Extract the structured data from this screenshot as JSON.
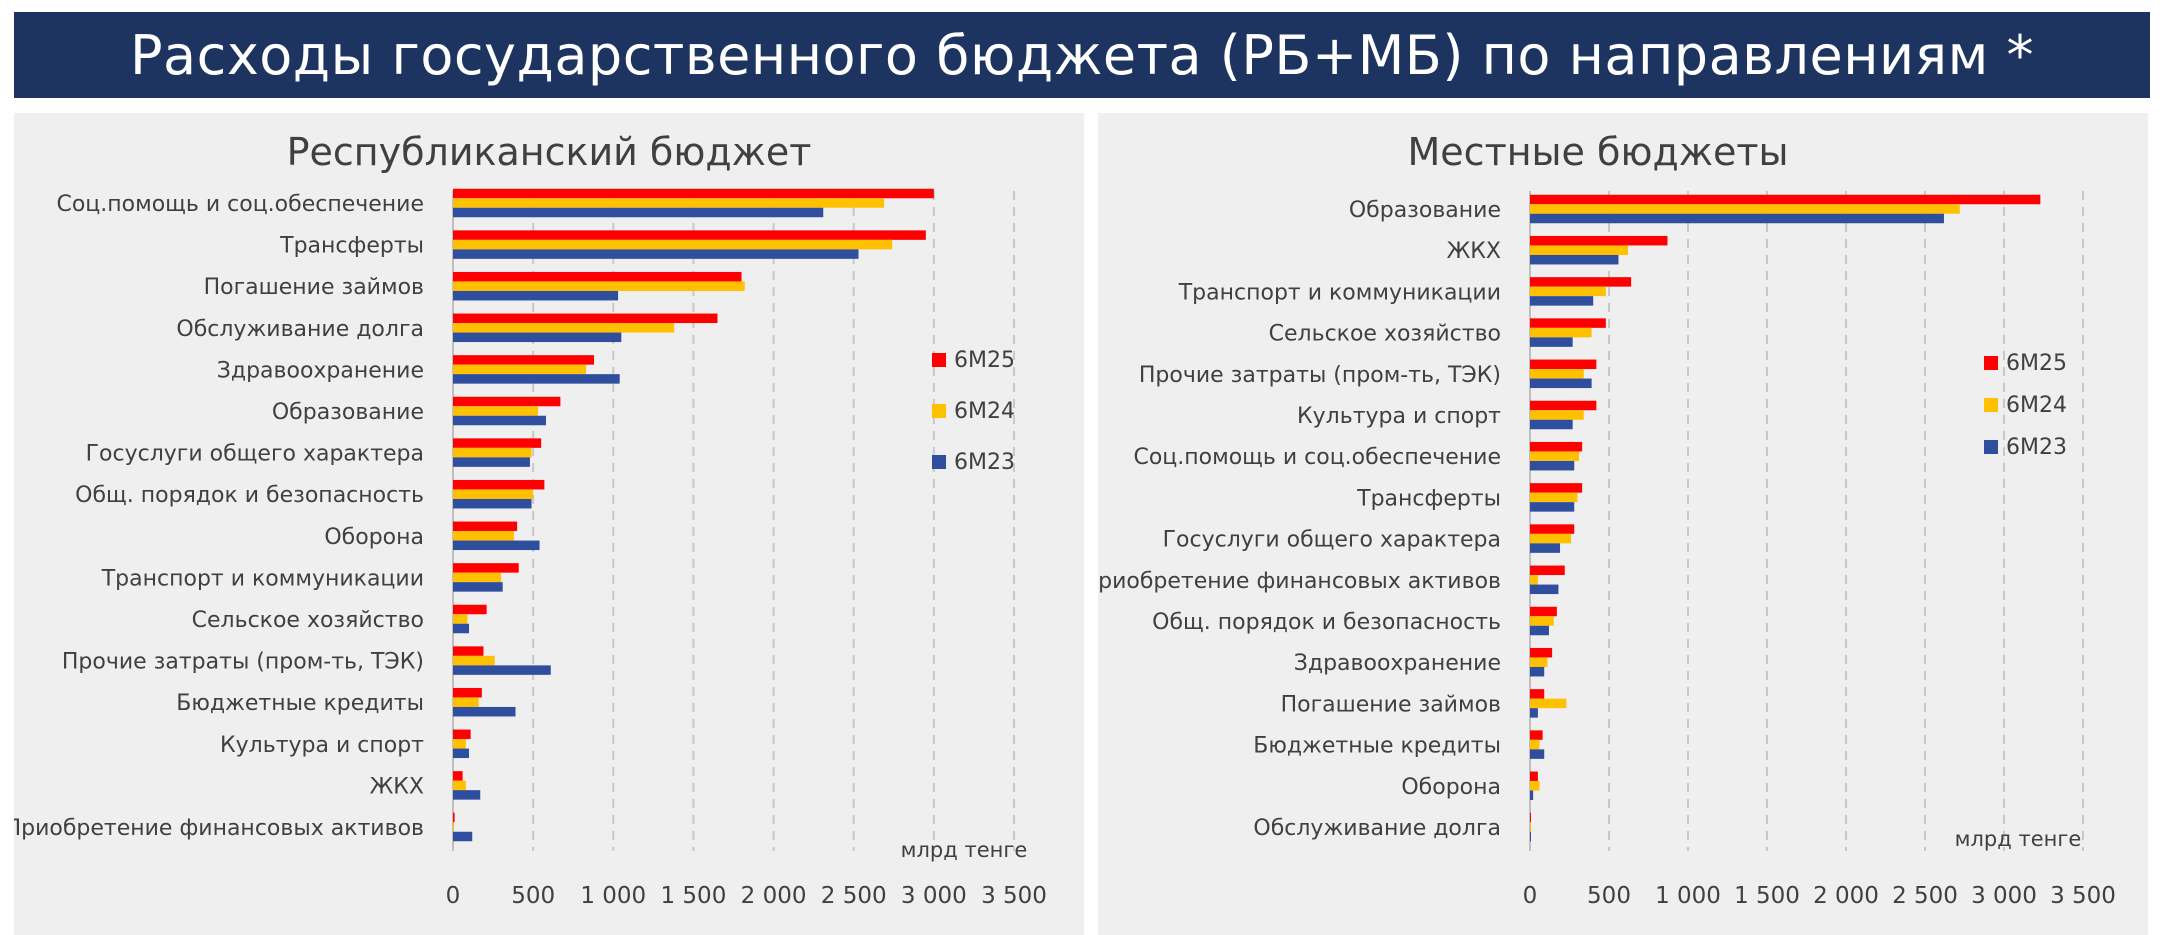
{
  "banner": {
    "title": "Расходы государственного бюджета (РБ+МБ) по направлениям *"
  },
  "colors": {
    "6М25": "#ff0000",
    "6М24": "#ffc000",
    "6М23": "#2f4f9e",
    "banner": "#1d3461"
  },
  "chart_data": [
    {
      "type": "bar",
      "orientation": "horizontal",
      "title": "Республиканский бюджет",
      "unit_label": "млрд тенге",
      "xlim": [
        0,
        3500
      ],
      "xticks": [
        "0",
        "500",
        "1 000",
        "1 500",
        "2 000",
        "2 500",
        "3 000",
        "3 500"
      ],
      "grid": "vertical dashed",
      "legend_position": "right",
      "categories": [
        "Соц.помощь и соц.обеспечение",
        "Трансферты",
        "Погашение займов",
        "Обслуживание долга",
        "Здравоохранение",
        "Образование",
        "Госуслуги общего характера",
        "Общ. порядок и безопасность",
        "Оборона",
        "Транспорт и коммуникации",
        "Сельское хозяйство",
        "Прочие затраты (пром-ть, ТЭК)",
        "Бюджетные кредиты",
        "Культура и спорт",
        "ЖКХ",
        "Приобретение финансовых активов"
      ],
      "series": [
        {
          "name": "6М25",
          "values": [
            3000,
            2950,
            1800,
            1650,
            880,
            670,
            550,
            570,
            400,
            410,
            210,
            190,
            180,
            110,
            60,
            10
          ]
        },
        {
          "name": "6М24",
          "values": [
            2690,
            2740,
            1820,
            1380,
            830,
            530,
            490,
            500,
            380,
            300,
            90,
            260,
            160,
            80,
            80,
            5
          ]
        },
        {
          "name": "6М23",
          "values": [
            2310,
            2530,
            1030,
            1050,
            1040,
            580,
            480,
            490,
            540,
            310,
            100,
            610,
            390,
            100,
            170,
            120
          ]
        }
      ]
    },
    {
      "type": "bar",
      "orientation": "horizontal",
      "title": "Местные бюджеты",
      "unit_label": "млрд тенге",
      "xlim": [
        0,
        3500
      ],
      "xticks": [
        "0",
        "500",
        "1 000",
        "1 500",
        "2 000",
        "2 500",
        "3 000",
        "3 500"
      ],
      "grid": "vertical dashed",
      "legend_position": "right",
      "categories": [
        "Образование",
        "ЖКХ",
        "Транспорт и коммуникации",
        "Сельское хозяйство",
        "Прочие затраты (пром-ть, ТЭК)",
        "Культура и спорт",
        "Соц.помощь и соц.обеспечение",
        "Трансферты",
        "Госуслуги общего характера",
        "Приобретение финансовых активов",
        "Общ. порядок и безопасность",
        "Здравоохранение",
        "Погашение займов",
        "Бюджетные кредиты",
        "Оборона",
        "Обслуживание долга"
      ],
      "series": [
        {
          "name": "6М25",
          "values": [
            3230,
            870,
            640,
            480,
            420,
            420,
            330,
            330,
            280,
            220,
            170,
            140,
            90,
            80,
            50,
            5
          ]
        },
        {
          "name": "6М24",
          "values": [
            2720,
            620,
            480,
            390,
            340,
            340,
            310,
            300,
            260,
            50,
            150,
            110,
            230,
            60,
            60,
            5
          ]
        },
        {
          "name": "6М23",
          "values": [
            2620,
            560,
            400,
            270,
            390,
            270,
            280,
            280,
            190,
            180,
            120,
            90,
            50,
            90,
            20,
            5
          ]
        }
      ]
    }
  ]
}
